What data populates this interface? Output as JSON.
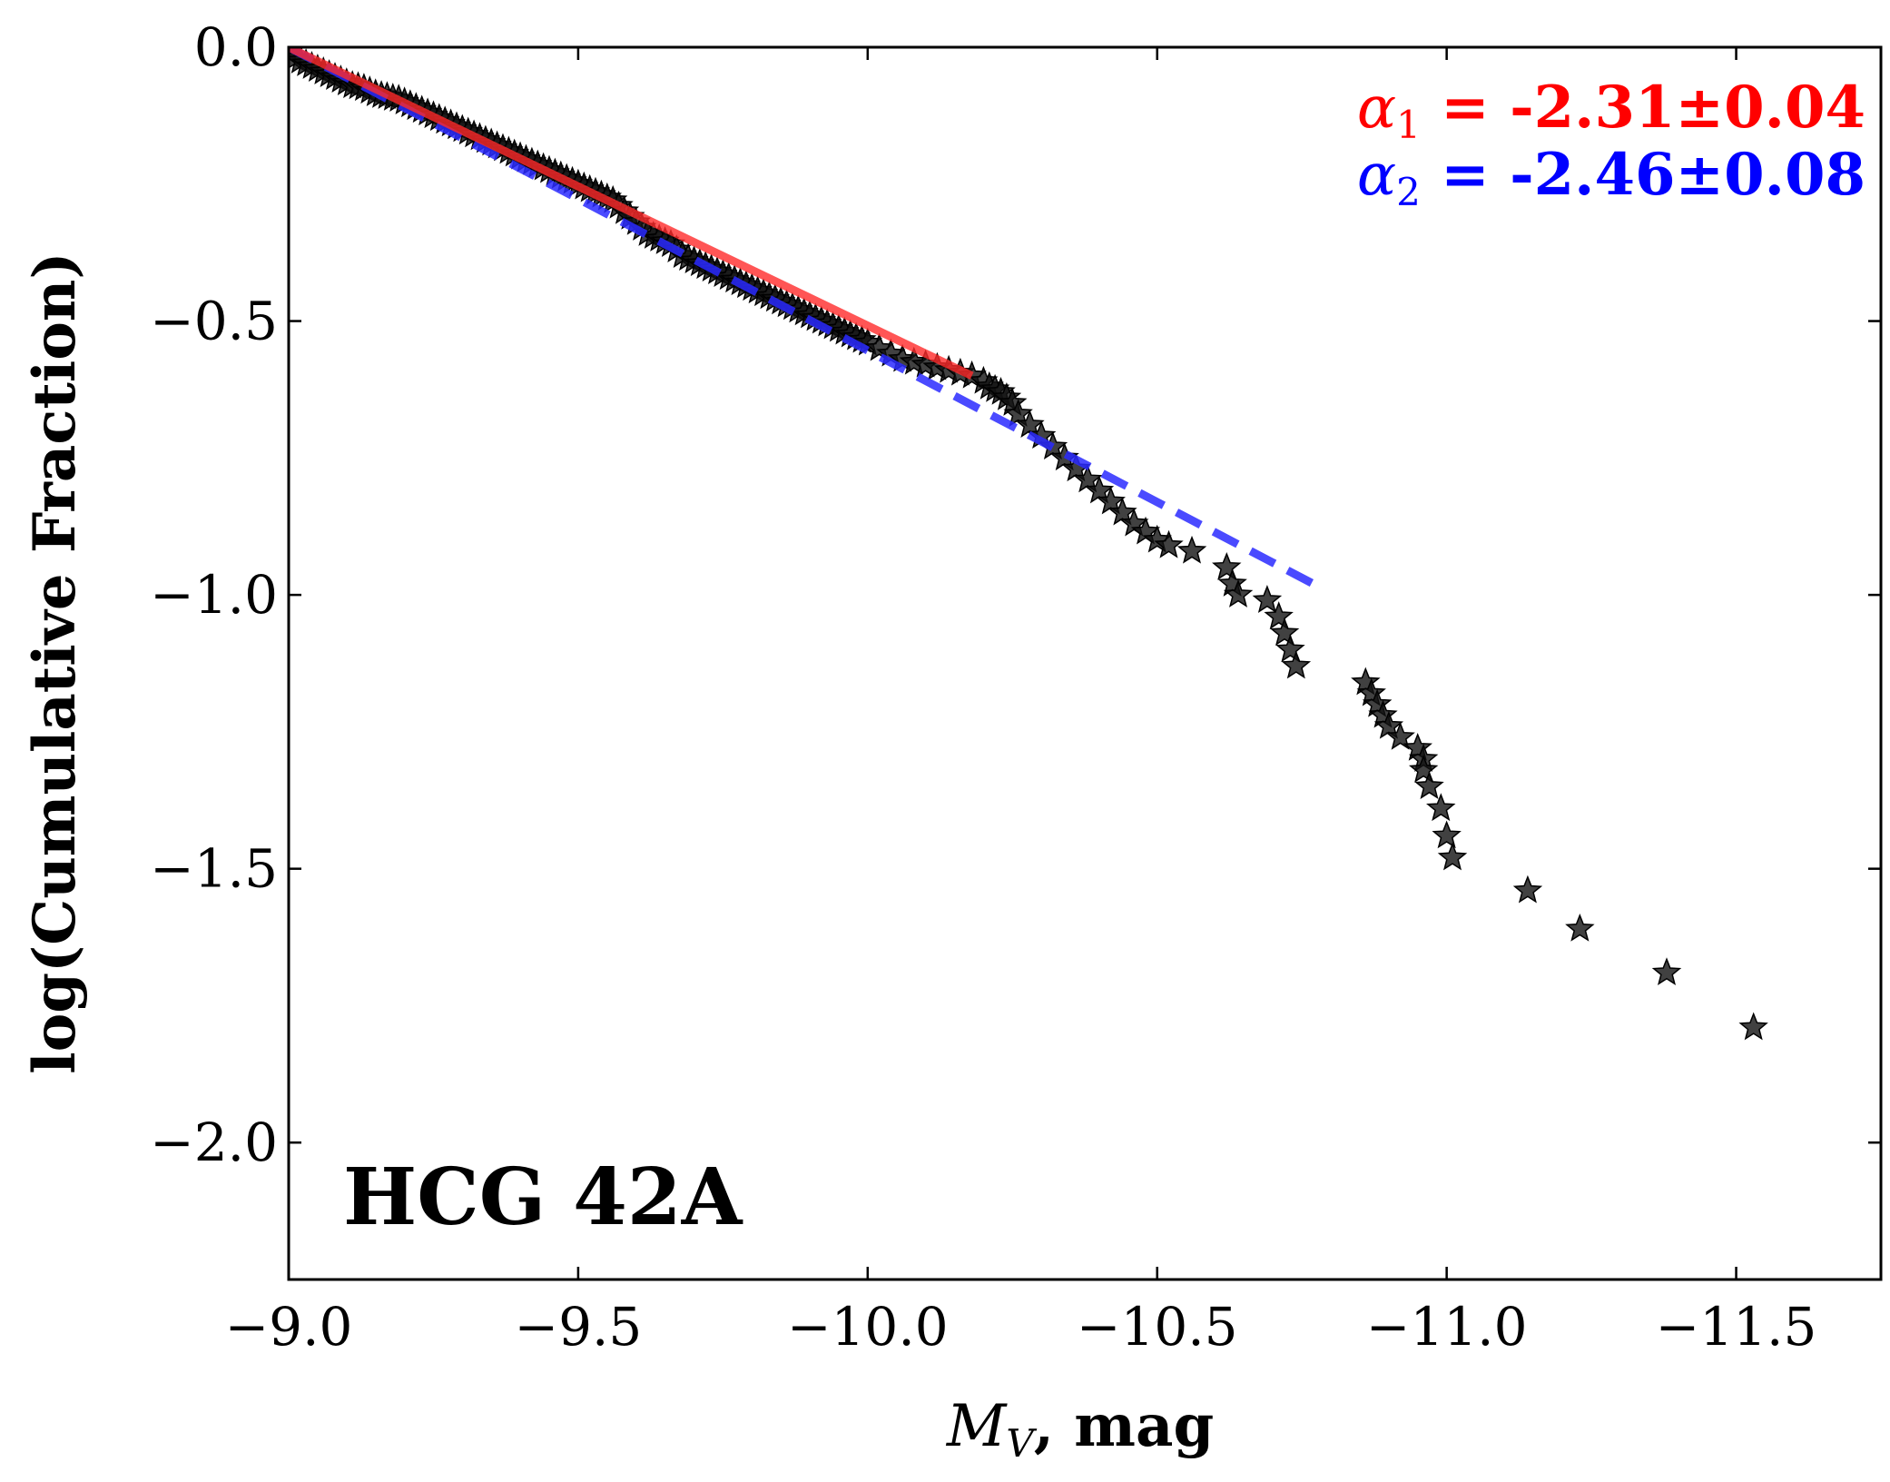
{
  "chart_data": {
    "type": "scatter",
    "panel_label": "HCG 42A",
    "xlabel_var": "M",
    "xlabel_sub": "V",
    "xlabel_unit": ", mag",
    "ylabel": "log(Cumulative Fraction)",
    "xlim": [
      -9.0,
      -11.75
    ],
    "ylim": [
      -2.25,
      0.0
    ],
    "x_ticks": [
      -9.0,
      -9.5,
      -10.0,
      -10.5,
      -11.0,
      -11.5
    ],
    "x_tick_labels": [
      "−9.0",
      "−9.5",
      "−10.0",
      "−10.5",
      "−11.0",
      "−11.5"
    ],
    "y_ticks": [
      0.0,
      -0.5,
      -1.0,
      -1.5,
      -2.0
    ],
    "y_tick_labels": [
      "0.0",
      "−0.5",
      "−1.0",
      "−1.5",
      "−2.0"
    ],
    "colors": {
      "fit1": "#ff2a2a",
      "fit2": "#2a2aff",
      "points": "#111111",
      "annot1": "#ff0000",
      "annot2": "#0000ff"
    },
    "fits": [
      {
        "name": "alpha1",
        "symbol": "α",
        "sub": "1",
        "eq_text": " = -2.31±0.04",
        "style": "solid",
        "x": [
          -9.0,
          -10.18
        ],
        "y": [
          0.0,
          -0.6
        ]
      },
      {
        "name": "alpha2",
        "symbol": "α",
        "sub": "2",
        "eq_text": " = -2.46±0.08",
        "style": "dashed",
        "x": [
          -9.0,
          -10.77
        ],
        "y": [
          0.0,
          -0.98
        ]
      }
    ],
    "points_x": [
      -9.0,
      -9.01,
      -9.02,
      -9.03,
      -9.04,
      -9.05,
      -9.06,
      -9.07,
      -9.08,
      -9.09,
      -9.1,
      -9.11,
      -9.12,
      -9.13,
      -9.14,
      -9.15,
      -9.16,
      -9.17,
      -9.18,
      -9.19,
      -9.2,
      -9.21,
      -9.22,
      -9.23,
      -9.24,
      -9.25,
      -9.26,
      -9.27,
      -9.28,
      -9.29,
      -9.3,
      -9.31,
      -9.32,
      -9.33,
      -9.34,
      -9.35,
      -9.36,
      -9.37,
      -9.38,
      -9.39,
      -9.4,
      -9.41,
      -9.42,
      -9.43,
      -9.44,
      -9.45,
      -9.46,
      -9.47,
      -9.48,
      -9.49,
      -9.5,
      -9.51,
      -9.52,
      -9.53,
      -9.54,
      -9.55,
      -9.56,
      -9.57,
      -9.58,
      -9.59,
      -9.6,
      -9.61,
      -9.62,
      -9.63,
      -9.64,
      -9.65,
      -9.66,
      -9.67,
      -9.68,
      -9.69,
      -9.7,
      -9.71,
      -9.72,
      -9.73,
      -9.74,
      -9.75,
      -9.76,
      -9.77,
      -9.78,
      -9.79,
      -9.8,
      -9.81,
      -9.82,
      -9.83,
      -9.84,
      -9.85,
      -9.86,
      -9.87,
      -9.88,
      -9.89,
      -9.9,
      -9.91,
      -9.92,
      -9.93,
      -9.94,
      -9.95,
      -9.96,
      -9.97,
      -9.98,
      -9.99,
      -10.0,
      -10.02,
      -10.04,
      -10.06,
      -10.08,
      -10.1,
      -10.12,
      -10.14,
      -10.16,
      -10.18,
      -10.2,
      -10.21,
      -10.22,
      -10.23,
      -10.24,
      -10.25,
      -10.26,
      -10.28,
      -10.3,
      -10.32,
      -10.34,
      -10.36,
      -10.38,
      -10.4,
      -10.42,
      -10.44,
      -10.46,
      -10.48,
      -10.5,
      -10.52,
      -10.56,
      -10.62,
      -10.63,
      -10.64,
      -10.69,
      -10.71,
      -10.72,
      -10.73,
      -10.74,
      -10.86,
      -10.87,
      -10.88,
      -10.89,
      -10.9,
      -10.92,
      -10.95,
      -10.96,
      -10.96,
      -10.97,
      -10.99,
      -11.0,
      -11.01,
      -11.14,
      -11.23,
      -11.38,
      -11.53
    ],
    "points_y": [
      -0.01,
      -0.02,
      -0.025,
      -0.03,
      -0.035,
      -0.04,
      -0.045,
      -0.05,
      -0.055,
      -0.06,
      -0.065,
      -0.07,
      -0.072,
      -0.075,
      -0.08,
      -0.085,
      -0.088,
      -0.09,
      -0.093,
      -0.095,
      -0.1,
      -0.105,
      -0.11,
      -0.115,
      -0.12,
      -0.125,
      -0.13,
      -0.135,
      -0.14,
      -0.145,
      -0.15,
      -0.155,
      -0.16,
      -0.165,
      -0.17,
      -0.175,
      -0.18,
      -0.185,
      -0.19,
      -0.195,
      -0.2,
      -0.205,
      -0.21,
      -0.215,
      -0.22,
      -0.225,
      -0.23,
      -0.235,
      -0.24,
      -0.245,
      -0.25,
      -0.255,
      -0.26,
      -0.265,
      -0.27,
      -0.275,
      -0.28,
      -0.29,
      -0.3,
      -0.31,
      -0.32,
      -0.33,
      -0.34,
      -0.345,
      -0.35,
      -0.355,
      -0.36,
      -0.37,
      -0.38,
      -0.385,
      -0.39,
      -0.395,
      -0.4,
      -0.405,
      -0.41,
      -0.415,
      -0.42,
      -0.425,
      -0.43,
      -0.435,
      -0.44,
      -0.445,
      -0.45,
      -0.455,
      -0.46,
      -0.465,
      -0.47,
      -0.475,
      -0.48,
      -0.485,
      -0.49,
      -0.495,
      -0.5,
      -0.505,
      -0.51,
      -0.515,
      -0.52,
      -0.525,
      -0.53,
      -0.535,
      -0.54,
      -0.55,
      -0.56,
      -0.57,
      -0.575,
      -0.58,
      -0.585,
      -0.59,
      -0.595,
      -0.6,
      -0.61,
      -0.62,
      -0.625,
      -0.63,
      -0.64,
      -0.65,
      -0.67,
      -0.69,
      -0.71,
      -0.73,
      -0.75,
      -0.77,
      -0.79,
      -0.81,
      -0.83,
      -0.85,
      -0.87,
      -0.885,
      -0.9,
      -0.91,
      -0.92,
      -0.95,
      -0.98,
      -1.0,
      -1.01,
      -1.04,
      -1.07,
      -1.1,
      -1.13,
      -1.16,
      -1.18,
      -1.2,
      -1.22,
      -1.24,
      -1.26,
      -1.28,
      -1.3,
      -1.32,
      -1.35,
      -1.39,
      -1.44,
      -1.48,
      -1.54,
      -1.61,
      -1.69,
      -1.79
    ]
  }
}
